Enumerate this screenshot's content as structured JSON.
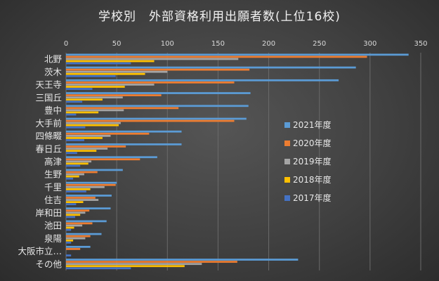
{
  "chart_data": {
    "type": "bar",
    "orientation": "horizontal",
    "title": "学校別　外部資格利用出願者数(上位16校)",
    "xlim": [
      0,
      350
    ],
    "x_ticks": [
      0,
      50,
      100,
      150,
      200,
      250,
      300,
      350
    ],
    "grid": true,
    "legend_position": "right",
    "categories": [
      "北野",
      "茨木",
      "天王寺",
      "三国丘",
      "豊中",
      "大手前",
      "四條畷",
      "春日丘",
      "高津",
      "生野",
      "千里",
      "住吉",
      "岸和田",
      "池田",
      "泉陽",
      "大阪市立…",
      "その他"
    ],
    "series": [
      {
        "name": "2021年度",
        "color": "#5b9bd5",
        "values": [
          338,
          286,
          269,
          182,
          180,
          178,
          114,
          114,
          90,
          56,
          50,
          45,
          44,
          40,
          35,
          24,
          229
        ]
      },
      {
        "name": "2020年度",
        "color": "#ed7d31",
        "values": [
          297,
          181,
          166,
          94,
          111,
          166,
          82,
          59,
          73,
          31,
          49,
          29,
          23,
          26,
          24,
          14,
          169
        ]
      },
      {
        "name": "2019年度",
        "color": "#a5a5a5",
        "values": [
          170,
          100,
          87,
          56,
          57,
          54,
          44,
          41,
          25,
          18,
          38,
          32,
          19,
          16,
          19,
          0,
          134
        ]
      },
      {
        "name": "2018年度",
        "color": "#ffc000",
        "values": [
          87,
          78,
          58,
          36,
          32,
          52,
          36,
          30,
          22,
          13,
          24,
          17,
          14,
          8,
          7,
          0,
          117
        ]
      },
      {
        "name": "2017年度",
        "color": "#4472c4",
        "values": [
          64,
          49,
          26,
          16,
          10,
          19,
          18,
          11,
          14,
          7,
          20,
          10,
          9,
          5,
          5,
          5,
          64
        ]
      }
    ]
  }
}
